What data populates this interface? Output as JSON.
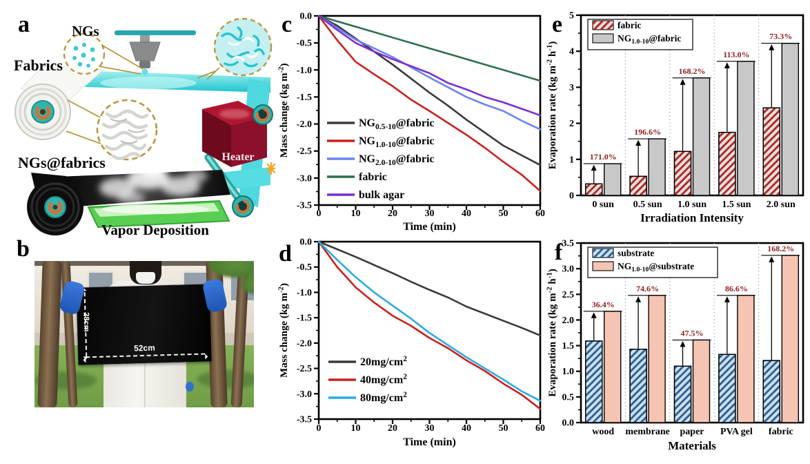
{
  "panel_a": {
    "label": "a",
    "ngs_label": "NGs",
    "fabrics_label": "Fabrics",
    "ngs_fabrics_label": "NGs@fabrics",
    "vapor_label": "Vapor Deposition",
    "heater_label": "Heater"
  },
  "panel_b": {
    "label": "b",
    "width_label": "52cm",
    "height_label": "28cm"
  },
  "chart_data": [
    {
      "id": "c",
      "type": "line",
      "panel_label": "c",
      "title": "",
      "xlabel": "Time (min)",
      "ylabel": "Mass change (kg m^-2^)",
      "xlim": [
        0,
        60
      ],
      "ylim": [
        -3.5,
        0
      ],
      "xticks": [
        "0",
        "10",
        "20",
        "30",
        "40",
        "50",
        "60"
      ],
      "yticks": [
        "0.0",
        "-0.5",
        "-1.0",
        "-1.5",
        "-2.0",
        "-2.5",
        "-3.0",
        "-3.5"
      ],
      "xminor": 5,
      "yminor": 0.25,
      "legend_position": "bottom-left",
      "x": [
        0,
        5,
        10,
        15,
        20,
        25,
        30,
        35,
        40,
        45,
        50,
        55,
        60
      ],
      "series": [
        {
          "name": "NG_0.5-10_@fabric",
          "color": "#3a3a3a",
          "values": [
            0,
            -0.18,
            -0.42,
            -0.66,
            -0.9,
            -1.16,
            -1.42,
            -1.66,
            -1.92,
            -2.16,
            -2.4,
            -2.58,
            -2.76
          ]
        },
        {
          "name": "NG_1.0-10_@fabric",
          "color": "#cc1f1f",
          "values": [
            0,
            -0.45,
            -0.85,
            -1.08,
            -1.3,
            -1.55,
            -1.76,
            -1.98,
            -2.2,
            -2.44,
            -2.7,
            -2.94,
            -3.24
          ]
        },
        {
          "name": "NG_2.0-10_@fabric",
          "color": "#6b83f0",
          "values": [
            0,
            -0.22,
            -0.44,
            -0.6,
            -0.76,
            -0.95,
            -1.14,
            -1.32,
            -1.5,
            -1.64,
            -1.76,
            -1.94,
            -2.1
          ]
        },
        {
          "name": "fabric",
          "color": "#2e6e4e",
          "values": [
            0,
            -0.1,
            -0.2,
            -0.3,
            -0.4,
            -0.5,
            -0.6,
            -0.7,
            -0.8,
            -0.9,
            -1.0,
            -1.1,
            -1.2
          ]
        },
        {
          "name": "bulk agar",
          "color": "#7a2fd0",
          "values": [
            0,
            -0.26,
            -0.5,
            -0.66,
            -0.8,
            -0.93,
            -1.06,
            -1.24,
            -1.36,
            -1.5,
            -1.6,
            -1.72,
            -1.84
          ]
        }
      ]
    },
    {
      "id": "d",
      "type": "line",
      "panel_label": "d",
      "title": "",
      "xlabel": "Time (min)",
      "ylabel": "Mass change (kg m^-2^)",
      "xlim": [
        0,
        60
      ],
      "ylim": [
        -3.5,
        0
      ],
      "xticks": [
        "0",
        "10",
        "20",
        "30",
        "40",
        "50",
        "60"
      ],
      "yticks": [
        "0.0",
        "-0.5",
        "-1.0",
        "-1.5",
        "-2.0",
        "-2.5",
        "-3.0",
        "-3.5"
      ],
      "xminor": 5,
      "yminor": 0.25,
      "legend_position": "middle-left",
      "x": [
        0,
        5,
        10,
        15,
        20,
        25,
        30,
        35,
        40,
        45,
        50,
        55,
        60
      ],
      "series": [
        {
          "name": "20mg/cm^2^",
          "color": "#3a3a3a",
          "values": [
            0,
            -0.15,
            -0.3,
            -0.46,
            -0.62,
            -0.79,
            -0.95,
            -1.1,
            -1.28,
            -1.42,
            -1.56,
            -1.7,
            -1.85
          ]
        },
        {
          "name": "40mg/cm^2^",
          "color": "#cc1f1f",
          "values": [
            0,
            -0.5,
            -0.9,
            -1.2,
            -1.46,
            -1.66,
            -1.9,
            -2.1,
            -2.34,
            -2.55,
            -2.8,
            -3.02,
            -3.3
          ]
        },
        {
          "name": "80mg/cm^2^",
          "color": "#29abe2",
          "values": [
            0,
            -0.36,
            -0.7,
            -1.0,
            -1.26,
            -1.52,
            -1.8,
            -2.04,
            -2.28,
            -2.5,
            -2.72,
            -2.95,
            -3.14
          ]
        }
      ]
    },
    {
      "id": "e",
      "type": "bar",
      "panel_label": "e",
      "title": "",
      "xlabel": "Irradiation Intensity",
      "ylabel": "Evaporation rate (kg m^-2^ h^-1^)",
      "ylim": [
        0,
        5
      ],
      "yticks": [
        "0",
        "1",
        "2",
        "3",
        "4",
        "5"
      ],
      "yminor": 0.5,
      "legend_position": "top-left",
      "categories": [
        "0 sun",
        "0.5 sun",
        "1.0 sun",
        "1.5 sun",
        "2.0 sun"
      ],
      "series": [
        {
          "name": "fabric",
          "fill": "#f4e0da",
          "hatch": "#a83030",
          "values": [
            0.32,
            0.53,
            1.22,
            1.75,
            2.43
          ]
        },
        {
          "name": "NG_1.0-10_@fabric",
          "fill": "#c8c8c8",
          "values": [
            0.88,
            1.57,
            3.26,
            3.72,
            4.22
          ]
        }
      ],
      "annotations": [
        "171.0%",
        "196.6%",
        "168.2%",
        "113.0%",
        "73.3%"
      ],
      "annotation_color": "#8f1d1d"
    },
    {
      "id": "f",
      "type": "bar",
      "panel_label": "f",
      "title": "",
      "xlabel": "Materials",
      "ylabel": "Evaporation rate (kg m^-2^ h^-1^)",
      "ylim": [
        0,
        3.5
      ],
      "yticks": [
        "0.0",
        "0.5",
        "1.0",
        "1.5",
        "2.0",
        "2.5",
        "3.0",
        "3.5"
      ],
      "yminor": 0.25,
      "legend_position": "top-left",
      "categories": [
        "wood",
        "membrane",
        "paper",
        "PVA gel",
        "fabric"
      ],
      "series": [
        {
          "name": "substrate",
          "fill": "#cfe0ef",
          "hatch": "#2f6496",
          "values": [
            1.59,
            1.43,
            1.1,
            1.33,
            1.21
          ]
        },
        {
          "name": "NG_1.0-10_@substrate",
          "fill": "#f6c4b2",
          "values": [
            2.17,
            2.48,
            1.61,
            2.48,
            3.26
          ]
        }
      ],
      "annotations": [
        "36.4%",
        "74.6%",
        "47.5%",
        "86.6%",
        "168.2%"
      ],
      "annotation_color": "#8f1d1d"
    }
  ]
}
